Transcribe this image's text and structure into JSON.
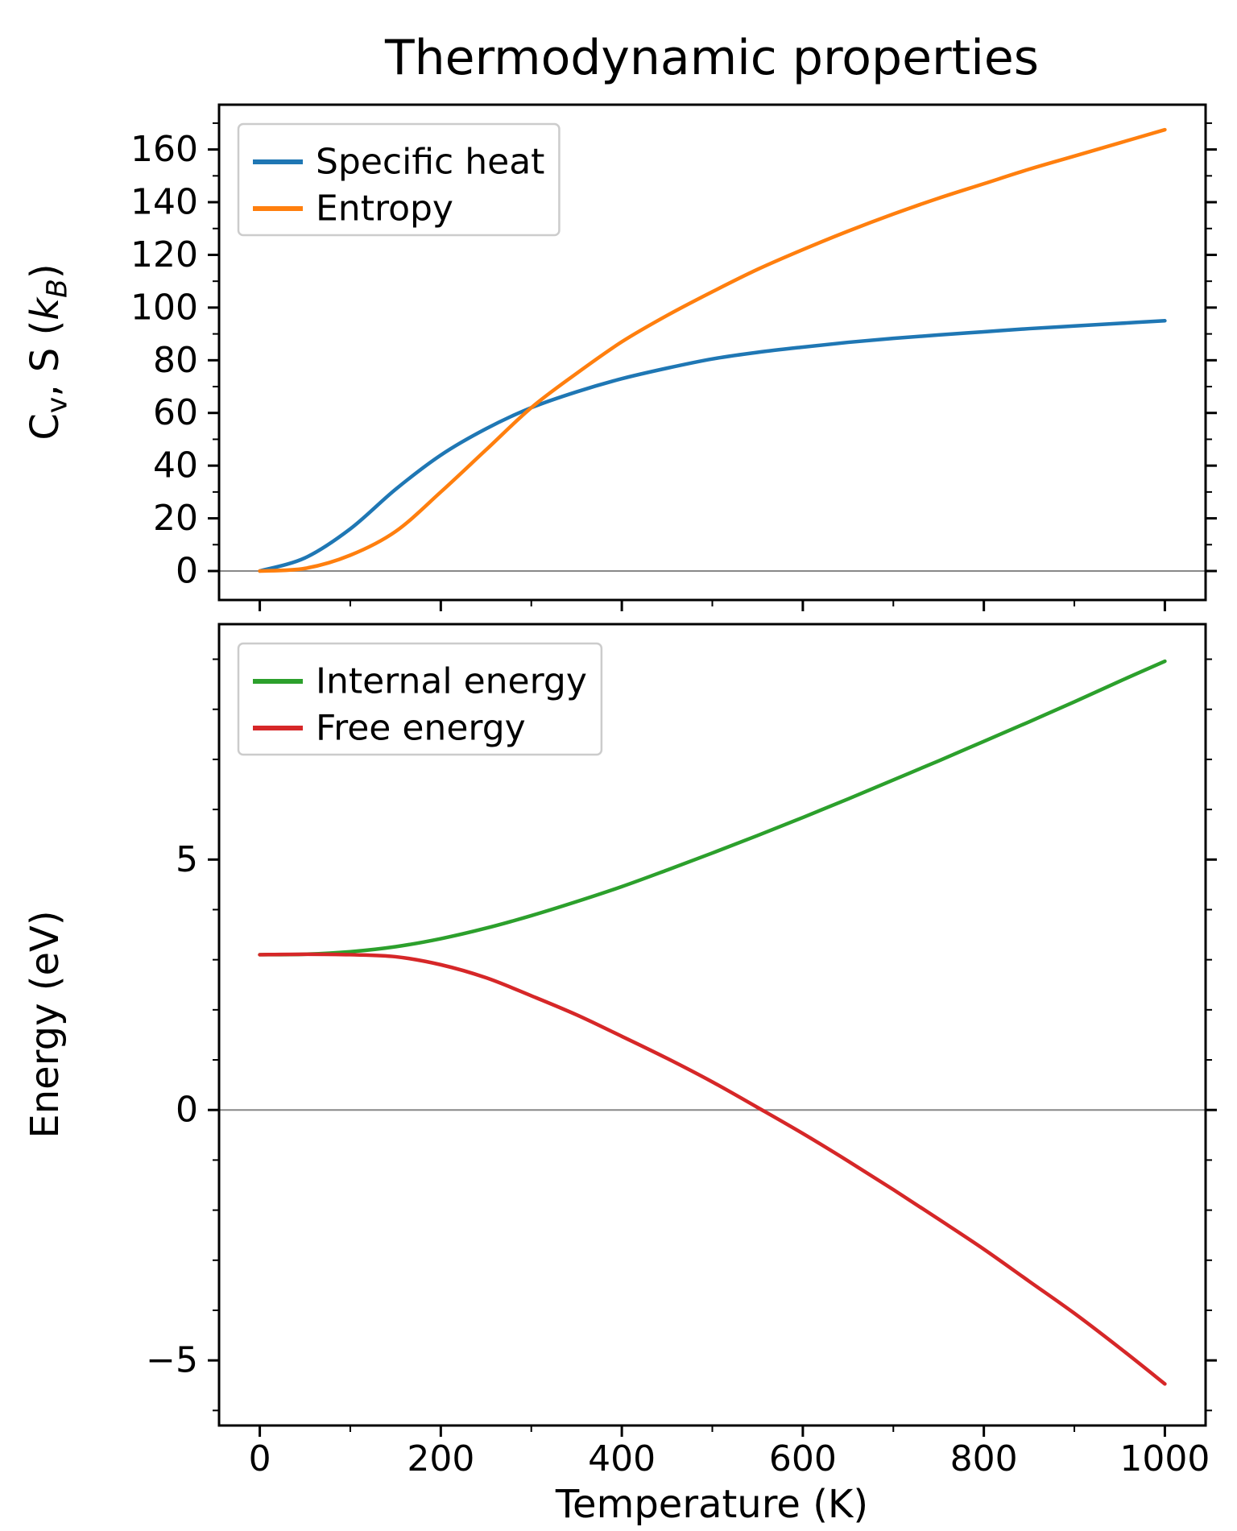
{
  "figure": {
    "title": "Thermodynamic properties",
    "background": "#ffffff",
    "axis_color": "#000000",
    "zero_line_color": "#888888"
  },
  "chart_data": [
    {
      "type": "line",
      "title": "",
      "xlabel": "",
      "ylabel": "Cv, S (kB)",
      "ylabel_parts": [
        {
          "text": "C"
        },
        {
          "text": "v",
          "sub": true
        },
        {
          "text": ", S ("
        },
        {
          "text": "k",
          "italic": true
        },
        {
          "text": "B",
          "sub": true,
          "italic": true
        },
        {
          "text": ")"
        }
      ],
      "x": [
        0,
        50,
        100,
        150,
        200,
        250,
        300,
        350,
        400,
        450,
        500,
        550,
        600,
        650,
        700,
        750,
        800,
        850,
        900,
        950,
        1000
      ],
      "series": [
        {
          "name": "Specific heat",
          "color": "#1f77b4",
          "values": [
            0,
            5,
            16,
            31,
            44,
            54,
            62,
            68,
            73,
            77,
            80.5,
            83,
            85,
            86.8,
            88.3,
            89.6,
            90.8,
            92,
            93,
            94,
            95
          ]
        },
        {
          "name": "Entropy",
          "color": "#ff7f0e",
          "values": [
            0,
            1,
            6,
            15,
            30,
            46,
            62,
            75,
            87,
            97,
            106,
            114.5,
            122,
            129,
            135.5,
            141.5,
            147,
            152.5,
            157.5,
            162.5,
            167.5
          ]
        }
      ],
      "xlim": [
        -45,
        1045
      ],
      "ylim": [
        -11,
        177
      ],
      "xticks": [
        0,
        200,
        400,
        600,
        800,
        1000
      ],
      "xticks_minor": [
        100,
        300,
        500,
        700,
        900
      ],
      "yticks": [
        0,
        20,
        40,
        60,
        80,
        100,
        120,
        140,
        160
      ],
      "yticks_minor": [
        10,
        30,
        50,
        70,
        90,
        110,
        130,
        150,
        170
      ],
      "x_tick_labels_visible": false,
      "grid": false,
      "zero_line": true,
      "legend_position": "upper-left"
    },
    {
      "type": "line",
      "title": "",
      "xlabel": "Temperature (K)",
      "ylabel": "Energy (eV)",
      "ylabel_parts": [
        {
          "text": "Energy (eV)"
        }
      ],
      "x": [
        0,
        50,
        100,
        150,
        200,
        250,
        300,
        350,
        400,
        450,
        500,
        550,
        600,
        650,
        700,
        750,
        800,
        850,
        900,
        950,
        1000
      ],
      "series": [
        {
          "name": "Internal energy",
          "color": "#2ca02c",
          "values": [
            3.1,
            3.11,
            3.16,
            3.26,
            3.42,
            3.63,
            3.88,
            4.16,
            4.46,
            4.79,
            5.13,
            5.48,
            5.84,
            6.21,
            6.59,
            6.97,
            7.36,
            7.75,
            8.15,
            8.56,
            8.96
          ]
        },
        {
          "name": "Free energy",
          "color": "#d62728",
          "values": [
            3.1,
            3.11,
            3.1,
            3.06,
            2.9,
            2.64,
            2.28,
            1.9,
            1.47,
            1.03,
            0.56,
            0.05,
            -0.47,
            -1.02,
            -1.59,
            -2.18,
            -2.78,
            -3.42,
            -4.06,
            -4.75,
            -5.47
          ]
        }
      ],
      "xlim": [
        -45,
        1045
      ],
      "ylim": [
        -6.3,
        9.7
      ],
      "xticks": [
        0,
        200,
        400,
        600,
        800,
        1000
      ],
      "xticks_minor": [
        100,
        300,
        500,
        700,
        900
      ],
      "yticks": [
        -5,
        0,
        5
      ],
      "yticks_minor": [
        -6,
        -4,
        -3,
        -2,
        -1,
        1,
        2,
        3,
        4,
        6,
        7,
        8,
        9
      ],
      "x_tick_labels_visible": true,
      "grid": false,
      "zero_line": true,
      "legend_position": "upper-left"
    }
  ]
}
